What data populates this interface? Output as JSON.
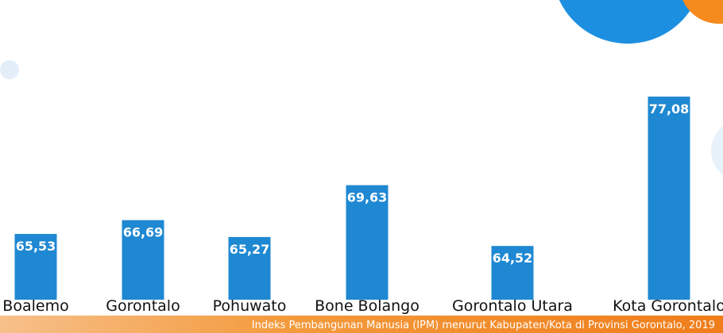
{
  "chart_data": {
    "type": "bar",
    "caption": "Indeks Pembangunan Manusia (IPM) menurut Kabupaten/Kota di Provinsi Gorontalo, 2019",
    "categories": [
      "Boalemo",
      "Gorontalo",
      "Pohuwato",
      "Bone Bolango",
      "Gorontalo Utara",
      "Kota Gorontalo"
    ],
    "values": [
      65.53,
      66.69,
      65.27,
      69.63,
      64.52,
      77.08
    ],
    "value_labels": [
      "65,53",
      "66,69",
      "65,27",
      "69,63",
      "64,52",
      "77,08"
    ],
    "color": "#1f88d2",
    "ylim": [
      60,
      78
    ]
  }
}
